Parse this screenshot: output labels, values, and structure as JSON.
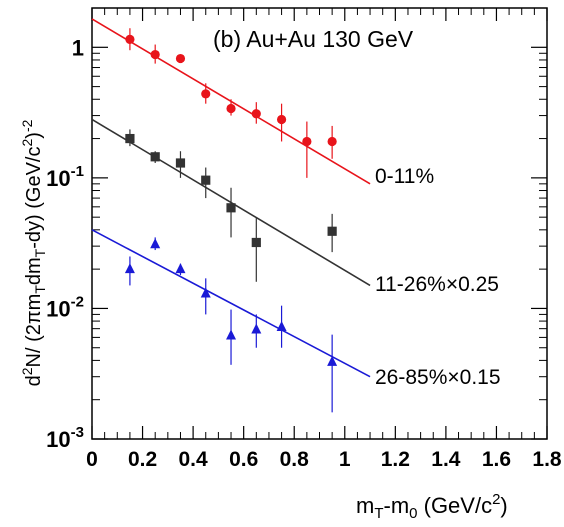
{
  "chart_data": {
    "type": "scatter",
    "title": "(b) Au+Au 130 GeV",
    "xlabel_parts": [
      "m",
      "T",
      "-m",
      "0",
      " (GeV/c",
      "2",
      ")"
    ],
    "ylabel_parts": [
      "d",
      "2",
      "N/ (2πm",
      "T",
      "dm",
      "T",
      "-dy) (GeV/c",
      "2",
      ")",
      "-2"
    ],
    "x_axis": {
      "min": 0,
      "max": 1.8,
      "ticks": [
        "0",
        "0.2",
        "0.4",
        "0.6",
        "0.8",
        "1",
        "1.2",
        "1.4",
        "1.6",
        "1.8"
      ]
    },
    "y_axis": {
      "scale": "log",
      "min": 0.001,
      "max": 2.0,
      "ticks": [
        {
          "value": 1,
          "base": "1",
          "exp": ""
        },
        {
          "value": 0.1,
          "base": "10",
          "exp": "-1"
        },
        {
          "value": 0.01,
          "base": "10",
          "exp": "-2"
        },
        {
          "value": 0.001,
          "base": "10",
          "exp": "-3"
        }
      ]
    },
    "grid": false,
    "series": [
      {
        "name": "0-11%",
        "color": "#e8141b",
        "marker": "circle",
        "fit": {
          "x": [
            0,
            1.1
          ],
          "y": [
            1.65,
            0.09
          ]
        },
        "points": [
          {
            "x": 0.15,
            "y": 1.15,
            "lo": 0.95,
            "hi": 1.4
          },
          {
            "x": 0.25,
            "y": 0.88,
            "lo": 0.75,
            "hi": 1.05
          },
          {
            "x": 0.35,
            "y": 0.82,
            "lo": 0.8,
            "hi": 0.85
          },
          {
            "x": 0.45,
            "y": 0.44,
            "lo": 0.37,
            "hi": 0.53
          },
          {
            "x": 0.55,
            "y": 0.34,
            "lo": 0.3,
            "hi": 0.4
          },
          {
            "x": 0.65,
            "y": 0.31,
            "lo": 0.26,
            "hi": 0.38
          },
          {
            "x": 0.75,
            "y": 0.28,
            "lo": 0.19,
            "hi": 0.37
          },
          {
            "x": 0.85,
            "y": 0.19,
            "lo": 0.1,
            "hi": 0.27
          },
          {
            "x": 0.95,
            "y": 0.19,
            "lo": 0.14,
            "hi": 0.25
          }
        ]
      },
      {
        "name": "11-26%×0.25",
        "color": "#333333",
        "marker": "square",
        "fit": {
          "x": [
            0,
            1.1
          ],
          "y": [
            0.28,
            0.015
          ]
        },
        "points": [
          {
            "x": 0.15,
            "y": 0.2,
            "lo": 0.175,
            "hi": 0.235
          },
          {
            "x": 0.25,
            "y": 0.145,
            "lo": 0.13,
            "hi": 0.16
          },
          {
            "x": 0.35,
            "y": 0.13,
            "lo": 0.1,
            "hi": 0.16
          },
          {
            "x": 0.45,
            "y": 0.096,
            "lo": 0.07,
            "hi": 0.12
          },
          {
            "x": 0.55,
            "y": 0.059,
            "lo": 0.035,
            "hi": 0.084
          },
          {
            "x": 0.65,
            "y": 0.032,
            "lo": 0.016,
            "hi": 0.05
          },
          {
            "x": 0.95,
            "y": 0.039,
            "lo": 0.027,
            "hi": 0.053
          }
        ]
      },
      {
        "name": "26-85%×0.15",
        "color": "#1a1ad6",
        "marker": "triangle",
        "fit": {
          "x": [
            0,
            1.1
          ],
          "y": [
            0.04,
            0.003
          ]
        },
        "points": [
          {
            "x": 0.15,
            "y": 0.02,
            "lo": 0.015,
            "hi": 0.025
          },
          {
            "x": 0.25,
            "y": 0.031,
            "lo": 0.028,
            "hi": 0.035
          },
          {
            "x": 0.35,
            "y": 0.02,
            "lo": 0.018,
            "hi": 0.022
          },
          {
            "x": 0.45,
            "y": 0.013,
            "lo": 0.009,
            "hi": 0.017
          },
          {
            "x": 0.55,
            "y": 0.0062,
            "lo": 0.0037,
            "hi": 0.0098
          },
          {
            "x": 0.65,
            "y": 0.0069,
            "lo": 0.005,
            "hi": 0.009
          },
          {
            "x": 0.75,
            "y": 0.0072,
            "lo": 0.005,
            "hi": 0.0105
          },
          {
            "x": 0.95,
            "y": 0.0039,
            "lo": 0.0016,
            "hi": 0.0063
          }
        ]
      }
    ]
  }
}
